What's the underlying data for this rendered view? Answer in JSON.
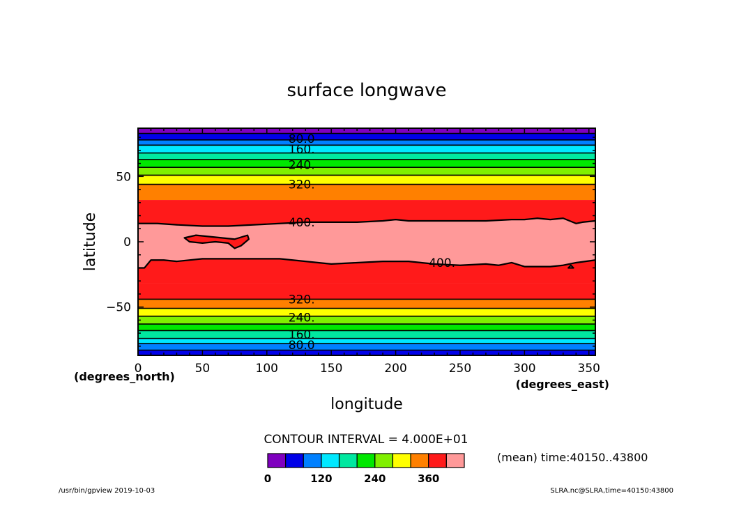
{
  "chart_data": {
    "type": "heatmap",
    "title": "surface longwave",
    "xlabel": "longitude",
    "ylabel": "latitude",
    "x_units": "(degrees_east)",
    "y_units": "(degrees_north)",
    "xlim": [
      0,
      355
    ],
    "ylim": [
      -87,
      87
    ],
    "x_ticks": [
      "0",
      "50",
      "100",
      "150",
      "200",
      "250",
      "300",
      "350"
    ],
    "x_tick_values": [
      0,
      50,
      100,
      150,
      200,
      250,
      300,
      350
    ],
    "y_ticks": [
      "50",
      "0",
      "−50"
    ],
    "y_tick_values": [
      50,
      0,
      -50
    ],
    "contour_interval_text": "CONTOUR INTERVAL = 4.000E+01",
    "levels": [
      0,
      40,
      80,
      120,
      160,
      200,
      240,
      280,
      320,
      360,
      400
    ],
    "colors": [
      "#7f00bf",
      "#0000e8",
      "#0080ff",
      "#00e8ff",
      "#00e8a0",
      "#00e800",
      "#80f000",
      "#ffff00",
      "#ff8000",
      "#ff1a1a",
      "#ff9999"
    ],
    "bands": [
      {
        "level": 0,
        "lat_north": 87,
        "lat_south": 83
      },
      {
        "level": 40,
        "lat_north": 83,
        "lat_south": 78
      },
      {
        "level": 80,
        "lat_north": 78,
        "lat_south": 74
      },
      {
        "level": 120,
        "lat_north": 74,
        "lat_south": 68
      },
      {
        "level": 160,
        "lat_north": 68,
        "lat_south": 63
      },
      {
        "level": 200,
        "lat_north": 63,
        "lat_south": 57
      },
      {
        "level": 240,
        "lat_north": 57,
        "lat_south": 51
      },
      {
        "level": 280,
        "lat_north": 51,
        "lat_south": 44
      },
      {
        "level": 320,
        "lat_north": 44,
        "lat_south": 32
      },
      {
        "level": 360,
        "lat_north": 32,
        "lat_south": -32
      },
      {
        "level": 400,
        "lat_north": -32,
        "lat_south": -32
      },
      {
        "level": 360,
        "lat_north": -32,
        "lat_south": -44
      },
      {
        "level": 320,
        "lat_north": -44,
        "lat_south": -51
      },
      {
        "level": 280,
        "lat_north": -51,
        "lat_south": -57
      },
      {
        "level": 240,
        "lat_north": -57,
        "lat_south": -63
      },
      {
        "level": 200,
        "lat_north": -63,
        "lat_south": -68
      },
      {
        "level": 160,
        "lat_north": -68,
        "lat_south": -74
      },
      {
        "level": 120,
        "lat_north": -74,
        "lat_south": -78
      },
      {
        "level": 80,
        "lat_north": -78,
        "lat_south": -83
      },
      {
        "level": 40,
        "lat_north": -83,
        "lat_south": -87
      }
    ],
    "contour_400_north": [
      [
        0,
        14
      ],
      [
        15,
        14
      ],
      [
        30,
        13
      ],
      [
        50,
        12
      ],
      [
        70,
        12
      ],
      [
        90,
        13
      ],
      [
        110,
        14
      ],
      [
        130,
        15
      ],
      [
        150,
        15
      ],
      [
        170,
        15
      ],
      [
        190,
        16
      ],
      [
        200,
        17
      ],
      [
        210,
        16
      ],
      [
        230,
        16
      ],
      [
        250,
        16
      ],
      [
        270,
        16
      ],
      [
        290,
        17
      ],
      [
        300,
        17
      ],
      [
        310,
        18
      ],
      [
        320,
        17
      ],
      [
        330,
        18
      ],
      [
        340,
        14
      ],
      [
        345,
        15
      ],
      [
        355,
        16
      ]
    ],
    "contour_400_south": [
      [
        0,
        -20
      ],
      [
        5,
        -20
      ],
      [
        10,
        -14
      ],
      [
        20,
        -14
      ],
      [
        30,
        -15
      ],
      [
        50,
        -13
      ],
      [
        70,
        -13
      ],
      [
        90,
        -13
      ],
      [
        110,
        -13
      ],
      [
        130,
        -15
      ],
      [
        150,
        -17
      ],
      [
        170,
        -16
      ],
      [
        190,
        -15
      ],
      [
        210,
        -15
      ],
      [
        230,
        -17
      ],
      [
        250,
        -18
      ],
      [
        270,
        -17
      ],
      [
        280,
        -18
      ],
      [
        290,
        -16
      ],
      [
        300,
        -19
      ],
      [
        320,
        -19
      ],
      [
        330,
        -18
      ],
      [
        340,
        -16
      ],
      [
        355,
        -14
      ]
    ],
    "contour_400_island": [
      [
        36,
        3
      ],
      [
        45,
        5
      ],
      [
        55,
        4
      ],
      [
        65,
        3
      ],
      [
        75,
        2
      ],
      [
        85,
        5
      ],
      [
        86,
        2
      ],
      [
        80,
        -3
      ],
      [
        75,
        -5
      ],
      [
        70,
        -1
      ],
      [
        60,
        0
      ],
      [
        50,
        -1
      ],
      [
        40,
        0
      ]
    ],
    "contour_400_small_island": [
      [
        336,
        -18
      ],
      [
        338,
        -20
      ],
      [
        334,
        -20
      ]
    ],
    "contour_labels": [
      {
        "text": "80.0",
        "lon": 127,
        "lat": 79
      },
      {
        "text": "160.",
        "lon": 127,
        "lat": 71
      },
      {
        "text": "240.",
        "lon": 127,
        "lat": 59
      },
      {
        "text": "320.",
        "lon": 127,
        "lat": 44
      },
      {
        "text": "400.",
        "lon": 127,
        "lat": 15
      },
      {
        "text": "400.",
        "lon": 236,
        "lat": -16
      },
      {
        "text": "320.",
        "lon": 127,
        "lat": -44
      },
      {
        "text": "240.",
        "lon": 127,
        "lat": -58
      },
      {
        "text": "160.",
        "lon": 127,
        "lat": -71
      },
      {
        "text": "80.0",
        "lon": 127,
        "lat": -79
      }
    ],
    "colorbar_labels": [
      "0",
      "120",
      "240",
      "360"
    ],
    "colorbar_label_levels": [
      0,
      120,
      240,
      360
    ]
  },
  "footer": {
    "left": "/usr/bin/gpview   2019-10-03",
    "right": "SLRA.nc@SLRA,time=40150:43800",
    "time_note": "(mean) time:40150..43800"
  }
}
